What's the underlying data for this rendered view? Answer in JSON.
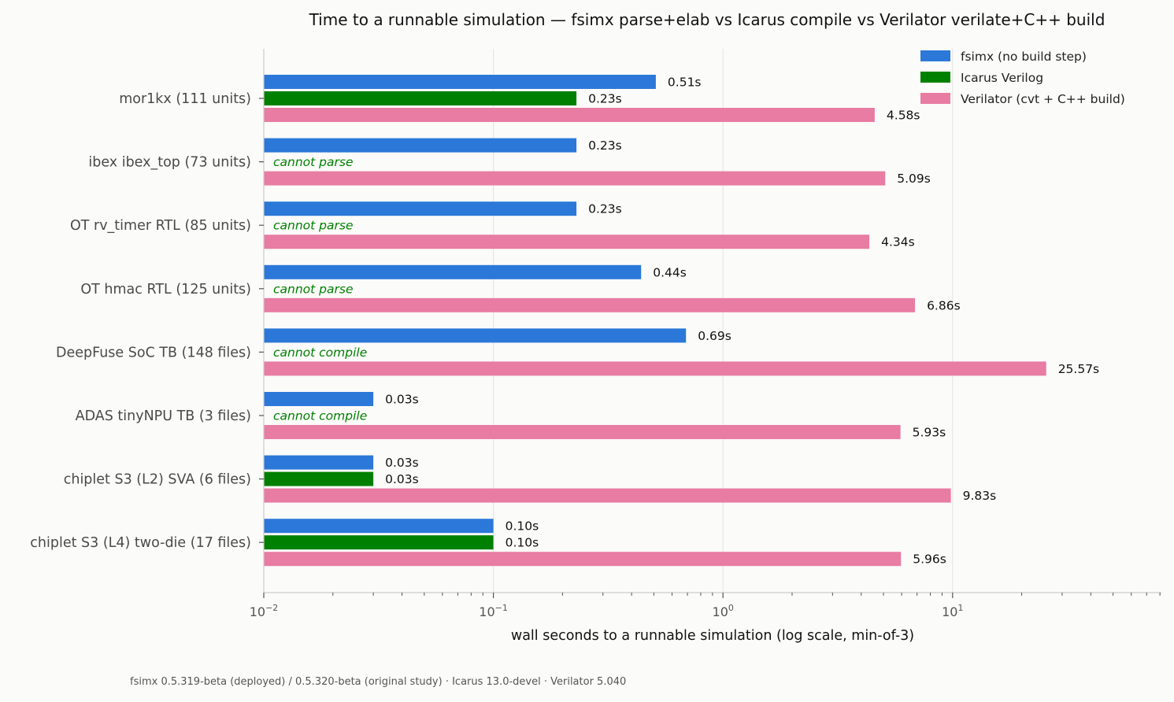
{
  "chart_data": {
    "type": "bar",
    "orientation": "horizontal",
    "title": "Time to a runnable simulation — fsimx parse+elab vs Icarus compile vs Verilator verilate+C++ build",
    "xlabel": "wall seconds to a runnable simulation (log scale, min-of-3)",
    "xscale": "log",
    "xlim": [
      0.01,
      80
    ],
    "x_ticks": [
      {
        "value": 0.01,
        "base": "10",
        "exp": "−2"
      },
      {
        "value": 0.1,
        "base": "10",
        "exp": "−1"
      },
      {
        "value": 1,
        "base": "10",
        "exp": "0"
      },
      {
        "value": 10,
        "base": "10",
        "exp": "1"
      }
    ],
    "grid": "vertical major gridlines",
    "legend_position": "top-right",
    "categories": [
      "mor1kx (111 units)",
      "ibex ibex_top (73 units)",
      "OT rv_timer RTL (85 units)",
      "OT hmac RTL (125 units)",
      "DeepFuse SoC TB (148 files)",
      "ADAS tinyNPU TB (3 files)",
      "chiplet S3 (L2) SVA (6 files)",
      "chiplet S3 (L4) two-die (17 files)"
    ],
    "series": [
      {
        "name": "fsimx (no build step)",
        "color": "#2b78d8",
        "values": [
          0.51,
          0.23,
          0.23,
          0.44,
          0.69,
          0.03,
          0.03,
          0.1
        ],
        "labels": [
          "0.51s",
          "0.23s",
          "0.23s",
          "0.44s",
          "0.69s",
          "0.03s",
          "0.03s",
          "0.10s"
        ]
      },
      {
        "name": "Icarus Verilog",
        "color": "#008000",
        "values": [
          0.23,
          null,
          null,
          null,
          null,
          null,
          0.03,
          0.1
        ],
        "labels": [
          "0.23s",
          "cannot parse",
          "cannot parse",
          "cannot parse",
          "cannot compile",
          "cannot compile",
          "0.03s",
          "0.10s"
        ]
      },
      {
        "name": "Verilator (cvt + C++ build)",
        "color": "#e87ca3",
        "values": [
          4.58,
          5.09,
          4.34,
          6.86,
          25.57,
          5.93,
          9.83,
          5.96
        ],
        "labels": [
          "4.58s",
          "5.09s",
          "4.34s",
          "6.86s",
          "25.57s",
          "5.93s",
          "9.83s",
          "5.96s"
        ]
      }
    ],
    "footer": "fsimx 0.5.319-beta (deployed) / 0.5.320-beta (original study) · Icarus 13.0-devel · Verilator 5.040"
  }
}
